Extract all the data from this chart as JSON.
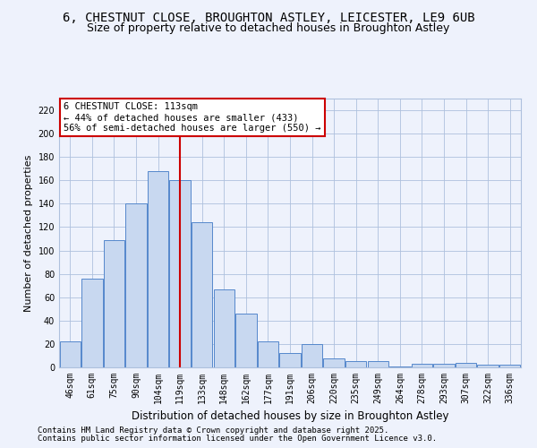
{
  "title_line1": "6, CHESTNUT CLOSE, BROUGHTON ASTLEY, LEICESTER, LE9 6UB",
  "title_line2": "Size of property relative to detached houses in Broughton Astley",
  "xlabel": "Distribution of detached houses by size in Broughton Astley",
  "ylabel": "Number of detached properties",
  "categories": [
    "46sqm",
    "61sqm",
    "75sqm",
    "90sqm",
    "104sqm",
    "119sqm",
    "133sqm",
    "148sqm",
    "162sqm",
    "177sqm",
    "191sqm",
    "206sqm",
    "220sqm",
    "235sqm",
    "249sqm",
    "264sqm",
    "278sqm",
    "293sqm",
    "307sqm",
    "322sqm",
    "336sqm"
  ],
  "values": [
    22,
    76,
    109,
    140,
    168,
    160,
    124,
    67,
    46,
    22,
    12,
    20,
    8,
    5,
    5,
    1,
    3,
    3,
    4,
    2,
    2
  ],
  "bar_color": "#c8d8f0",
  "bar_edge_color": "#5588cc",
  "vline_x_idx": 5,
  "vline_color": "#cc0000",
  "annotation_line1": "6 CHESTNUT CLOSE: 113sqm",
  "annotation_line2": "← 44% of detached houses are smaller (433)",
  "annotation_line3": "56% of semi-detached houses are larger (550) →",
  "annotation_box_facecolor": "#ffffff",
  "annotation_box_edgecolor": "#cc0000",
  "ylim": [
    0,
    230
  ],
  "yticks": [
    0,
    20,
    40,
    60,
    80,
    100,
    120,
    140,
    160,
    180,
    200,
    220
  ],
  "footer_line1": "Contains HM Land Registry data © Crown copyright and database right 2025.",
  "footer_line2": "Contains public sector information licensed under the Open Government Licence v3.0.",
  "bg_color": "#eef2fc",
  "grid_color": "#aec0dd",
  "title_fontsize": 10,
  "subtitle_fontsize": 9,
  "ylabel_fontsize": 8,
  "xlabel_fontsize": 8.5,
  "tick_fontsize": 7,
  "annot_fontsize": 7.5,
  "footer_fontsize": 6.5
}
